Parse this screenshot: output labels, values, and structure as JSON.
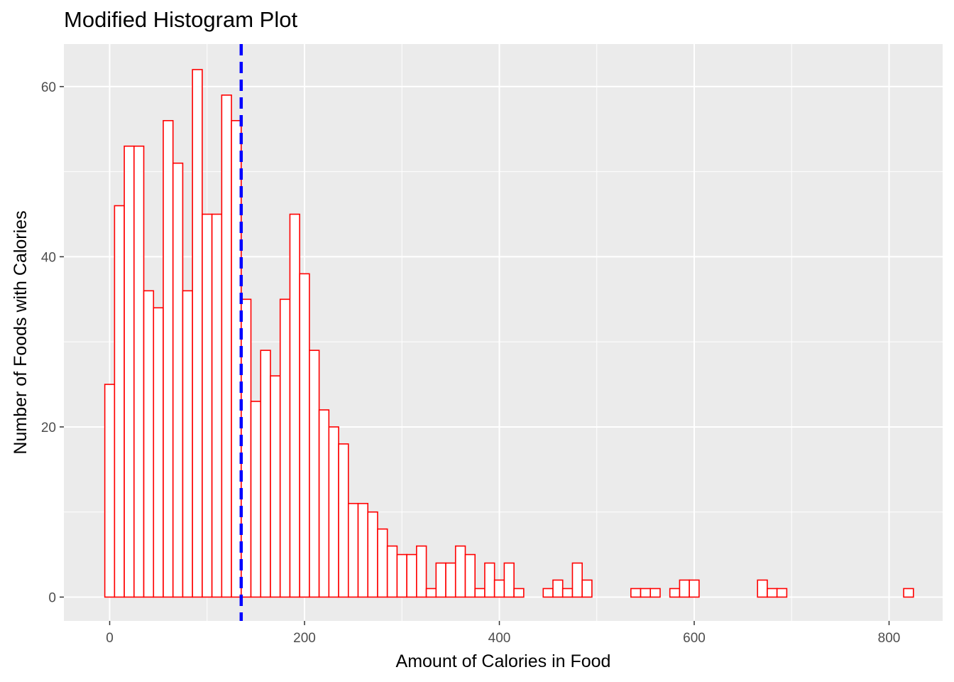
{
  "chart_data": {
    "type": "bar",
    "title": "Modified Histogram Plot",
    "xlabel": "Amount of Calories in Food",
    "ylabel": "Number of Foods with Calories",
    "xlim": [
      -47,
      855
    ],
    "ylim": [
      -2.8,
      65
    ],
    "xticks": [
      0,
      200,
      400,
      600,
      800
    ],
    "yticks": [
      0,
      20,
      40,
      60
    ],
    "grid": true,
    "bin_width": 10,
    "bin_start": -5,
    "values": [
      25,
      46,
      53,
      53,
      36,
      34,
      56,
      51,
      36,
      62,
      45,
      45,
      59,
      56,
      35,
      23,
      29,
      26,
      35,
      45,
      38,
      29,
      22,
      20,
      18,
      11,
      11,
      10,
      8,
      6,
      5,
      5,
      6,
      1,
      4,
      4,
      6,
      5,
      1,
      4,
      2,
      4,
      1,
      0,
      0,
      1,
      2,
      1,
      4,
      2,
      0,
      0,
      0,
      0,
      1,
      1,
      1,
      0,
      1,
      2,
      2,
      0,
      0,
      0,
      0,
      0,
      0,
      2,
      1,
      1,
      0,
      0,
      0,
      0,
      0,
      0,
      0,
      0,
      0,
      0,
      0,
      0,
      1
    ],
    "vline": {
      "x": 135,
      "style": "dashed",
      "color": "#0000ff"
    },
    "colors": {
      "bar_outline": "#ff0000",
      "bar_fill": "#ffffff",
      "panel": "#ebebeb",
      "grid": "#ffffff"
    }
  }
}
